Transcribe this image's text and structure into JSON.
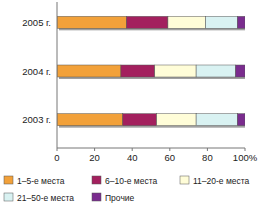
{
  "chart_data": {
    "type": "bar",
    "orientation": "horizontal",
    "stacked": true,
    "categories": [
      "2005 г.",
      "2004 г.",
      "2003 г."
    ],
    "series": [
      {
        "name": "1–5-е места",
        "color": "#f2a13a",
        "values": [
          37,
          34,
          35
        ]
      },
      {
        "name": "6–10-е места",
        "color": "#a3205e",
        "values": [
          22,
          18,
          18
        ]
      },
      {
        "name": "11–20-е места",
        "color": "#fffdd8",
        "values": [
          20,
          22,
          21
        ]
      },
      {
        "name": "21–50-е места",
        "color": "#d9f2f2",
        "values": [
          17,
          21,
          22
        ]
      },
      {
        "name": "Прочие",
        "color": "#7a2c8e",
        "values": [
          4,
          5,
          4
        ]
      }
    ],
    "xlim": [
      0,
      100
    ],
    "xticks": [
      0,
      20,
      40,
      60,
      80,
      {
        "value": 100,
        "label": "100%"
      }
    ],
    "grid": false,
    "legend": "bottom"
  }
}
